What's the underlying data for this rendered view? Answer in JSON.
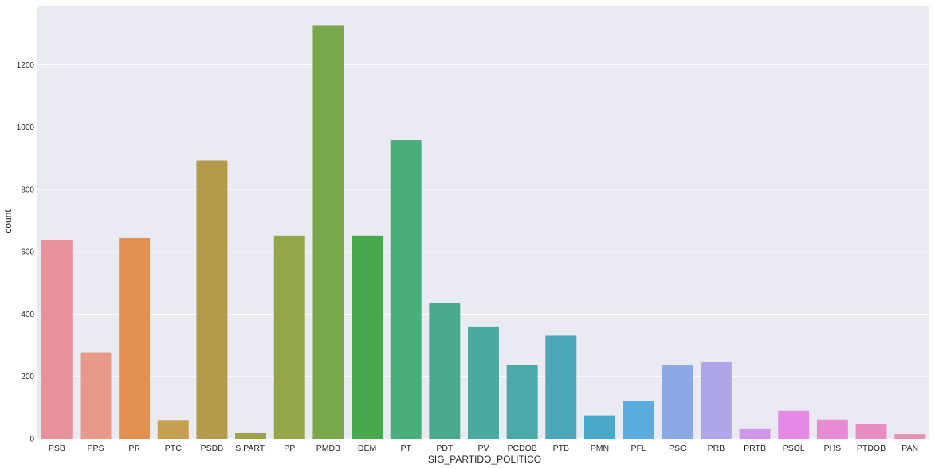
{
  "chart_data": {
    "type": "bar",
    "title": "",
    "xlabel": "SIG_PARTIDO_POLITICO",
    "ylabel": "count",
    "ylim": [
      0,
      1390
    ],
    "yticks": [
      0,
      200,
      400,
      600,
      800,
      1000,
      1200
    ],
    "grid": true,
    "categories": [
      "PSB",
      "PPS",
      "PR",
      "PTC",
      "PSDB",
      "S.PART.",
      "PP",
      "PMDB",
      "DEM",
      "PT",
      "PDT",
      "PV",
      "PCDOB",
      "PTB",
      "PMN",
      "PFL",
      "PSC",
      "PRB",
      "PRTB",
      "PSOL",
      "PHS",
      "PTDOB",
      "PAN"
    ],
    "values": [
      637,
      277,
      644,
      58,
      893,
      18,
      652,
      1325,
      652,
      958,
      437,
      358,
      236,
      331,
      75,
      120,
      235,
      248,
      31,
      90,
      62,
      46,
      15
    ],
    "colors": [
      "#e8919b",
      "#e8998a",
      "#e09150",
      "#c4a050",
      "#b29b4a",
      "#9fa24a",
      "#93a74a",
      "#79a84a",
      "#47a84d",
      "#4aae7a",
      "#49aa8e",
      "#4aaa9f",
      "#49aaa9",
      "#4aa8b9",
      "#4aa8c9",
      "#5aacdf",
      "#8ba9e4",
      "#ada7ea",
      "#cf95e8",
      "#e48ae6",
      "#e88ad4",
      "#e88cc4",
      "#e890b4"
    ],
    "background": "#eaeaf2",
    "grid_color": "#ffffff"
  }
}
